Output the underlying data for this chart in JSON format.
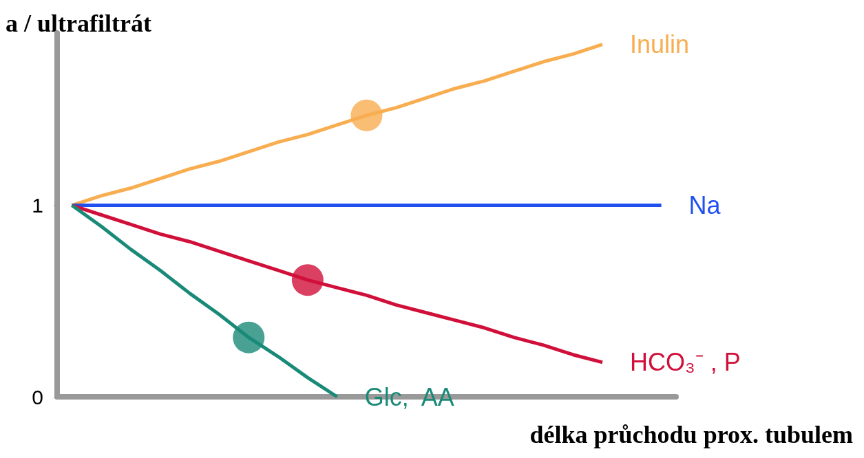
{
  "chart_data": {
    "type": "line",
    "xlabel": "délka průchodu prox. tubulem",
    "ylabel": "a / ultrafiltrát",
    "categories": [
      null,
      null,
      null,
      null,
      null,
      null,
      null,
      null,
      null,
      null,
      null,
      null,
      null,
      null,
      null,
      null,
      null,
      null,
      null,
      null,
      null
    ],
    "ylim": [
      0,
      1.9
    ],
    "yticks": [
      0,
      1
    ],
    "legend": false,
    "grid": false,
    "tick_labels": "y",
    "series": [
      {
        "name": "Inulin",
        "color": "#f8ad50",
        "values": [
          1,
          1.05,
          1.09,
          1.14,
          1.19,
          1.23,
          1.28,
          1.33,
          1.37,
          1.42,
          1.47,
          1.51,
          1.56,
          1.61,
          1.65,
          1.7,
          1.75,
          1.79,
          1.84,
          null,
          null
        ]
      },
      {
        "name": "Na",
        "color": "#2050f0",
        "values": [
          1,
          1,
          1,
          1,
          1,
          1,
          1,
          1,
          1,
          1,
          1,
          1,
          1,
          1,
          1,
          1,
          1,
          1,
          1,
          1,
          1
        ]
      },
      {
        "name": "HCO₃⁻ , P",
        "color": "#d0103a",
        "values": [
          1,
          0.95,
          0.9,
          0.85,
          0.81,
          0.76,
          0.71,
          0.66,
          0.61,
          0.57,
          0.53,
          0.48,
          0.44,
          0.4,
          0.36,
          0.31,
          0.27,
          0.22,
          0.18,
          null,
          null
        ]
      },
      {
        "name": "Glc,  AA",
        "color": "#1a8a78",
        "values": [
          1,
          0.89,
          0.77,
          0.66,
          0.54,
          0.43,
          0.31,
          0.21,
          0.1,
          0,
          null,
          null,
          null,
          null,
          null,
          null,
          null,
          null,
          null,
          null,
          null
        ]
      },
      {
        "type": "scatter",
        "color": "#f8ad50",
        "marker": "circle",
        "values": [
          null,
          null,
          null,
          null,
          null,
          null,
          null,
          null,
          null,
          null,
          1.47,
          null,
          null,
          null,
          null,
          null,
          null,
          null,
          null,
          null,
          null
        ]
      },
      {
        "type": "scatter",
        "color": "#d0103a",
        "marker": "circle",
        "values": [
          null,
          null,
          null,
          null,
          null,
          null,
          null,
          null,
          0.61,
          null,
          null,
          null,
          null,
          null,
          null,
          null,
          null,
          null,
          null,
          null,
          null
        ]
      },
      {
        "type": "scatter",
        "color": "#1a8a78",
        "marker": "circle",
        "values": [
          null,
          null,
          null,
          null,
          null,
          null,
          0.31,
          null,
          null,
          null,
          null,
          null,
          null,
          null,
          null,
          null,
          null,
          null,
          null,
          null,
          null
        ]
      }
    ]
  }
}
